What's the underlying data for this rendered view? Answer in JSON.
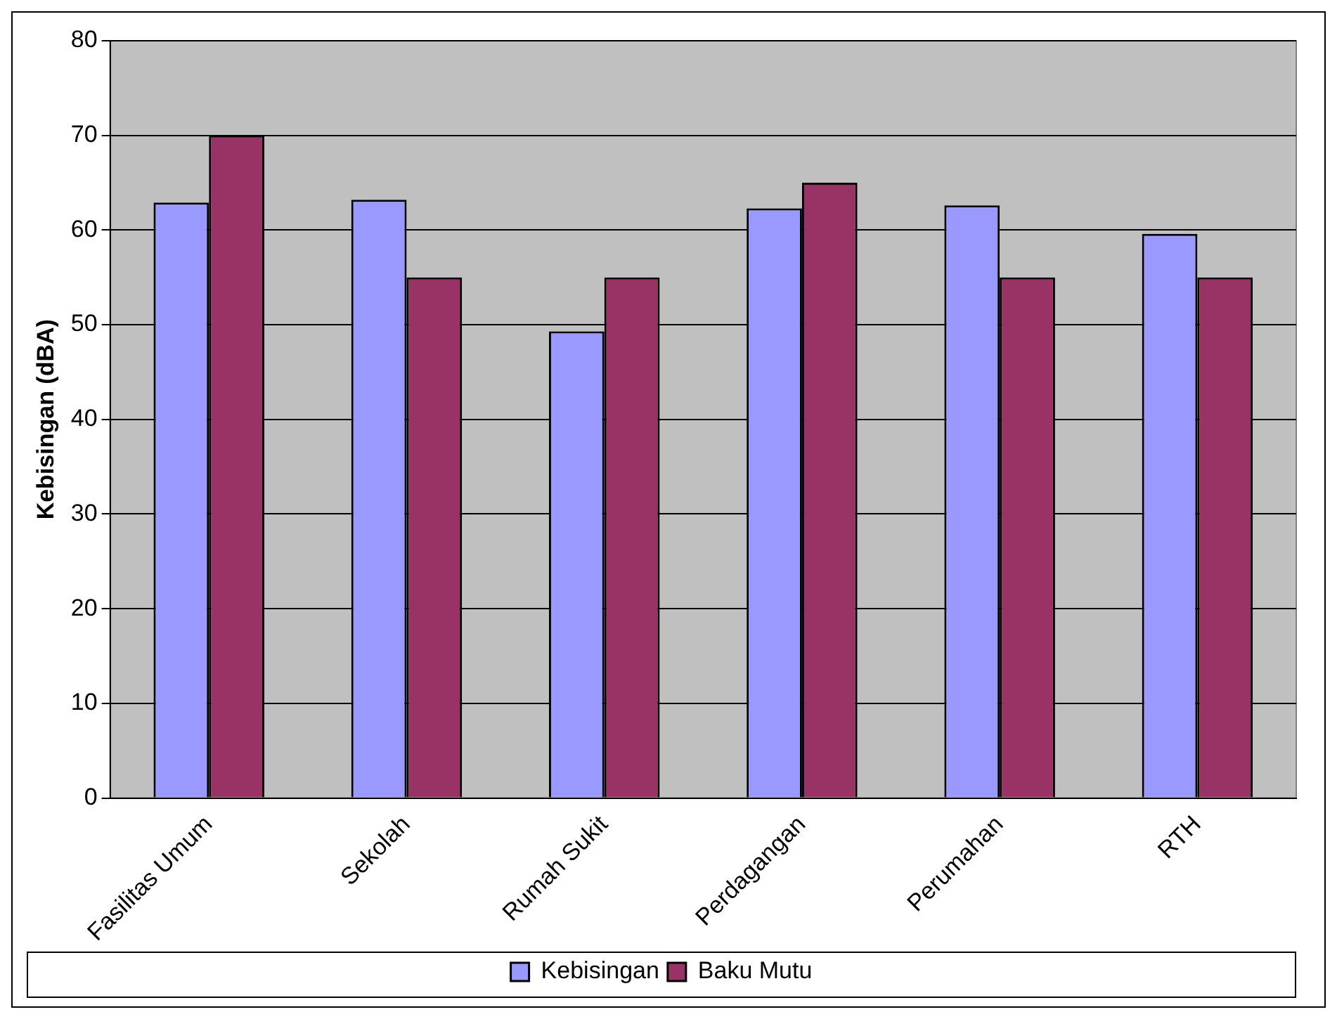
{
  "chart_data": {
    "type": "bar",
    "ylabel": "Kebisingan (dBA)",
    "categories": [
      "Fasilitas Umum",
      "Sekolah",
      "Rumah Sukit",
      "Perdagangan",
      "Perumahan",
      "RTH"
    ],
    "series": [
      {
        "name": "Kebisingan",
        "color": "#9999ff",
        "values": [
          62.9,
          63.2,
          49.3,
          62.3,
          62.6,
          59.6
        ]
      },
      {
        "name": "Baku Mutu",
        "color": "#993366",
        "values": [
          70,
          55,
          55,
          65,
          55,
          55
        ]
      }
    ],
    "ylim": [
      0,
      80
    ],
    "yticks": [
      0,
      10,
      20,
      30,
      40,
      50,
      60,
      70,
      80
    ],
    "grid": "y",
    "legend": "bottom"
  }
}
